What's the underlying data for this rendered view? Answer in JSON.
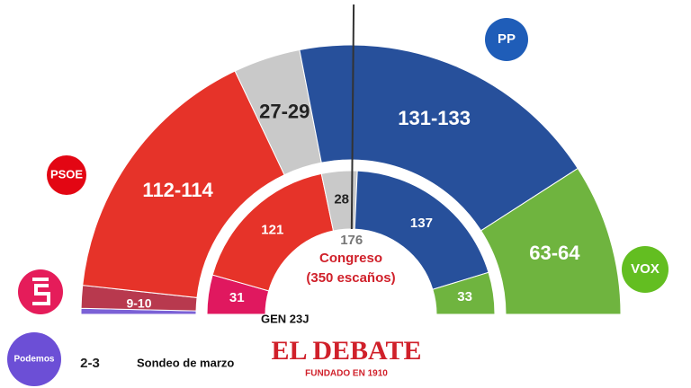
{
  "chart_data": {
    "type": "semicircle",
    "outer_ring": {
      "label": "Sondeo de marzo",
      "ranges": [
        [
          2,
          3
        ],
        [
          9,
          10
        ],
        [
          112,
          114
        ],
        [
          27,
          29
        ],
        [
          131,
          133
        ],
        [
          63,
          64
        ]
      ],
      "value_labels": [
        "2-3",
        "9-10",
        "112-114",
        "27-29",
        "131-133",
        "63-64"
      ],
      "colors": [
        "#7b61d6",
        "#b8394e",
        "#e63329",
        "#c9c9c9",
        "#27509b",
        "#6fb43f"
      ]
    },
    "inner_ring": {
      "label": "GEN 23J",
      "values": [
        31,
        121,
        28,
        137,
        33
      ],
      "colors": [
        "#e0185f",
        "#e63329",
        "#c9c9c9",
        "#27509b",
        "#6fb43f"
      ]
    },
    "majority": 176,
    "center_title": "Congreso",
    "center_subtitle": "(350 escaños)",
    "logos": [
      {
        "text": "PP",
        "color": "#1f5db8"
      },
      {
        "text": "PSOE",
        "color": "#e30613"
      },
      {
        "text": "VOX",
        "color": "#63be21"
      },
      {
        "text": "Podemos",
        "color": "#6c4fd6"
      }
    ],
    "brand": "EL DEBATE",
    "brand_tagline": "FUNDADO EN 1910"
  }
}
